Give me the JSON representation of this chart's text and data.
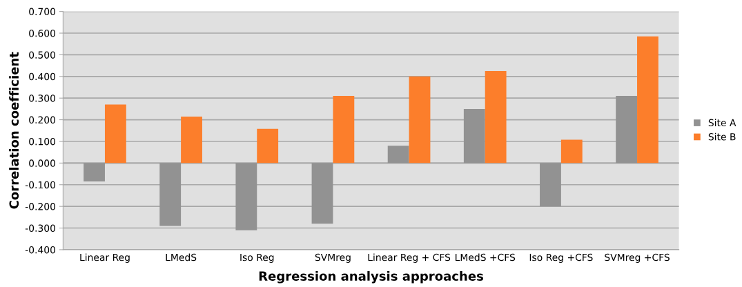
{
  "chart_data": {
    "type": "bar",
    "xlabel": "Regression analysis approaches",
    "ylabel": "Correlation coefficient",
    "categories": [
      "Linear Reg",
      "LMedS",
      "Iso Reg",
      "SVMreg",
      "Linear Reg + CFS",
      "LMedS +CFS",
      "Iso Reg +CFS",
      "SVMreg +CFS"
    ],
    "series": [
      {
        "name": "Site A",
        "color": "#929292",
        "values": [
          -0.085,
          -0.29,
          -0.31,
          -0.28,
          0.08,
          0.25,
          -0.2,
          0.31
        ]
      },
      {
        "name": "Site B",
        "color": "#fc7e2b",
        "values": [
          0.27,
          0.215,
          0.158,
          0.31,
          0.4,
          0.425,
          0.108,
          0.585
        ]
      }
    ],
    "ylim": [
      -0.4,
      0.7
    ],
    "yticks": [
      {
        "value": -0.4,
        "label": "-0.400"
      },
      {
        "value": -0.3,
        "label": "-0.300"
      },
      {
        "value": -0.2,
        "label": "-0.200"
      },
      {
        "value": -0.1,
        "label": "-0.100"
      },
      {
        "value": 0,
        "label": "0.000"
      },
      {
        "value": 0.1,
        "label": "0.100"
      },
      {
        "value": 0.2,
        "label": "0.200"
      },
      {
        "value": 0.3,
        "label": "0.300"
      },
      {
        "value": 0.4,
        "label": "0.400"
      },
      {
        "value": 0.5,
        "label": "0.500"
      },
      {
        "value": 0.6,
        "label": "0.600"
      },
      {
        "value": 0.7,
        "label": "0.700"
      }
    ],
    "grid": "y",
    "legend": "right"
  }
}
